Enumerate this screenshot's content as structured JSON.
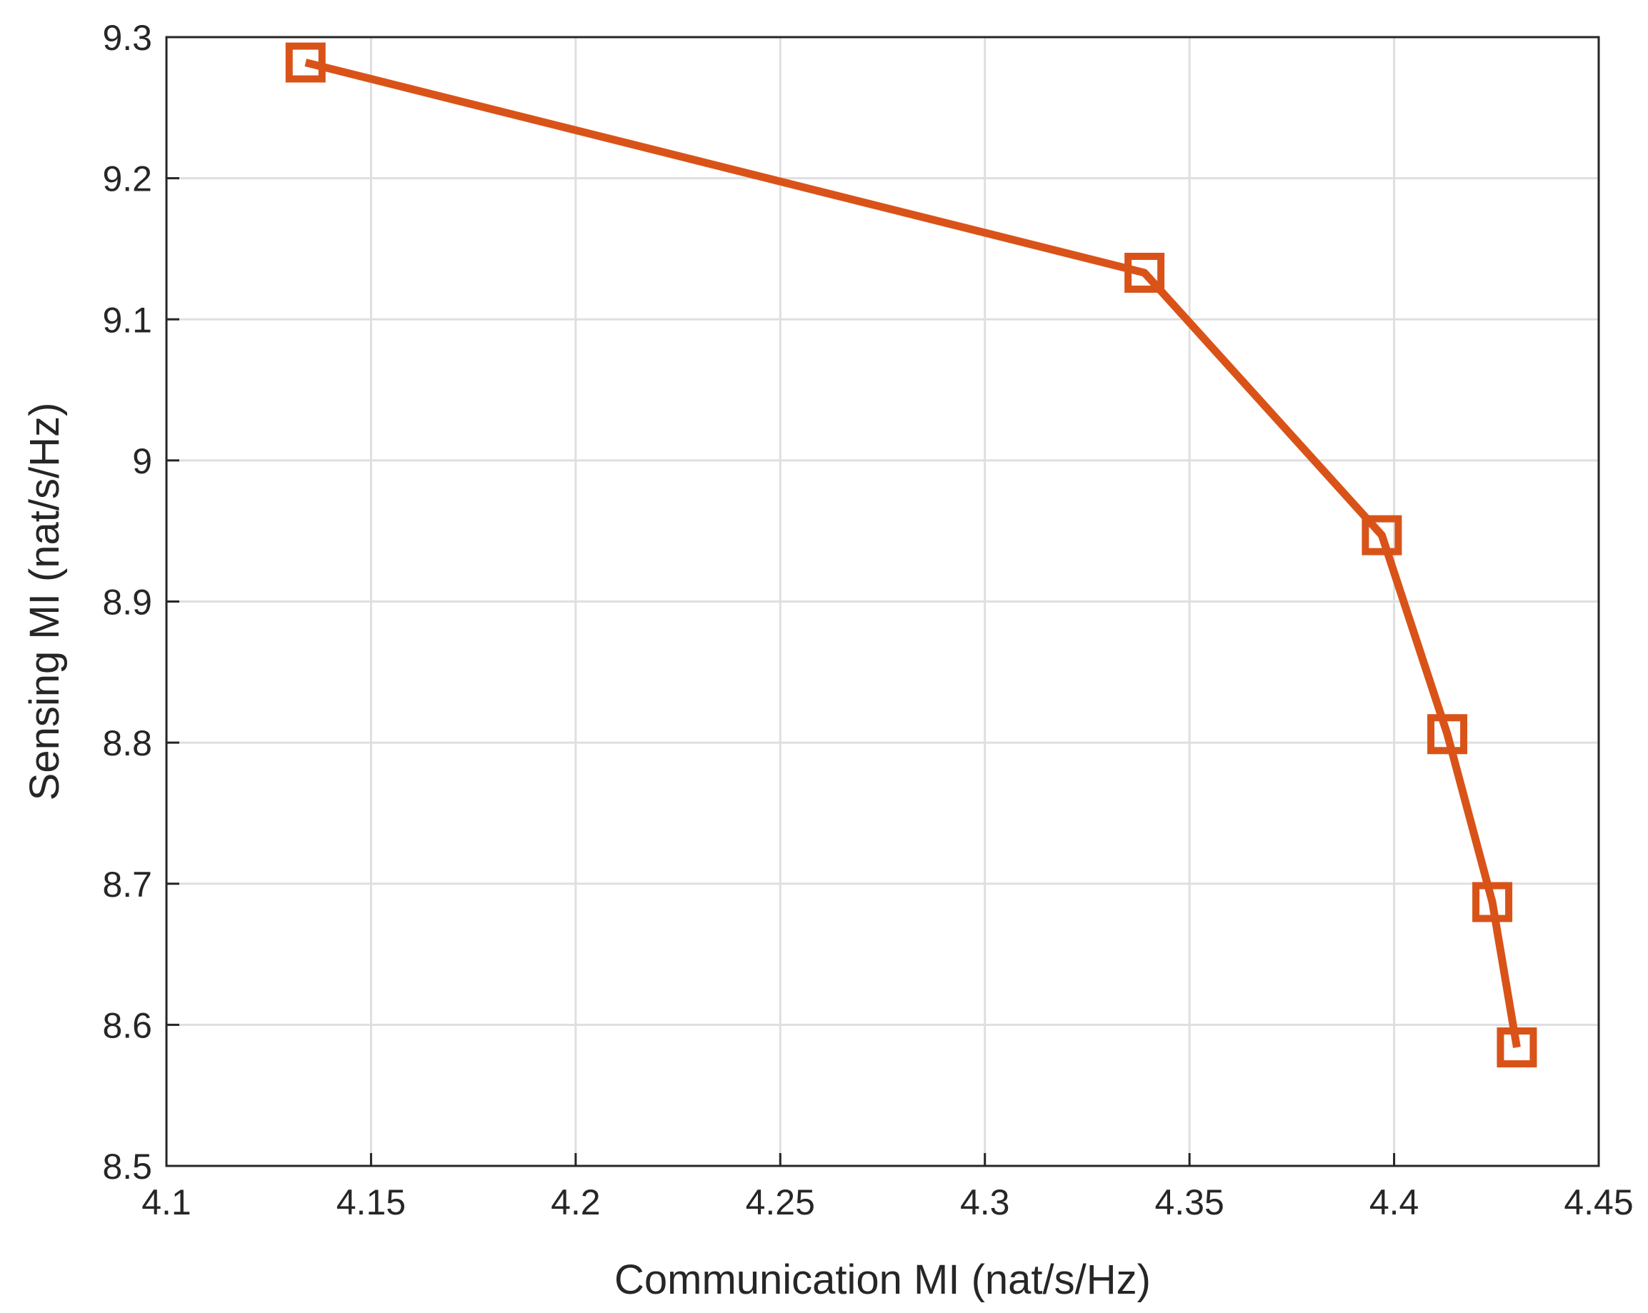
{
  "chart_data": {
    "type": "line",
    "xlabel": "Communication MI (nat/s/Hz)",
    "ylabel": "Sensing MI (nat/s/Hz)",
    "xlim": [
      4.1,
      4.45
    ],
    "ylim": [
      8.5,
      9.3
    ],
    "xticks": [
      4.1,
      4.15,
      4.2,
      4.25,
      4.3,
      4.35,
      4.4,
      4.45
    ],
    "yticks": [
      8.5,
      8.6,
      8.7,
      8.8,
      8.9,
      9.0,
      9.1,
      9.2,
      9.3
    ],
    "xtick_labels": [
      "4.1",
      "4.15",
      "4.2",
      "4.25",
      "4.3",
      "4.35",
      "4.4",
      "4.45"
    ],
    "ytick_labels": [
      "8.5",
      "8.6",
      "8.7",
      "8.8",
      "8.9",
      "9",
      "9.1",
      "9.2",
      "9.3"
    ],
    "grid": true,
    "series": [
      {
        "color": "#d95319",
        "marker": "square",
        "x": [
          4.134,
          4.339,
          4.397,
          4.413,
          4.424,
          4.43
        ],
        "y": [
          9.282,
          9.133,
          8.947,
          8.806,
          8.687,
          8.584
        ]
      }
    ]
  }
}
